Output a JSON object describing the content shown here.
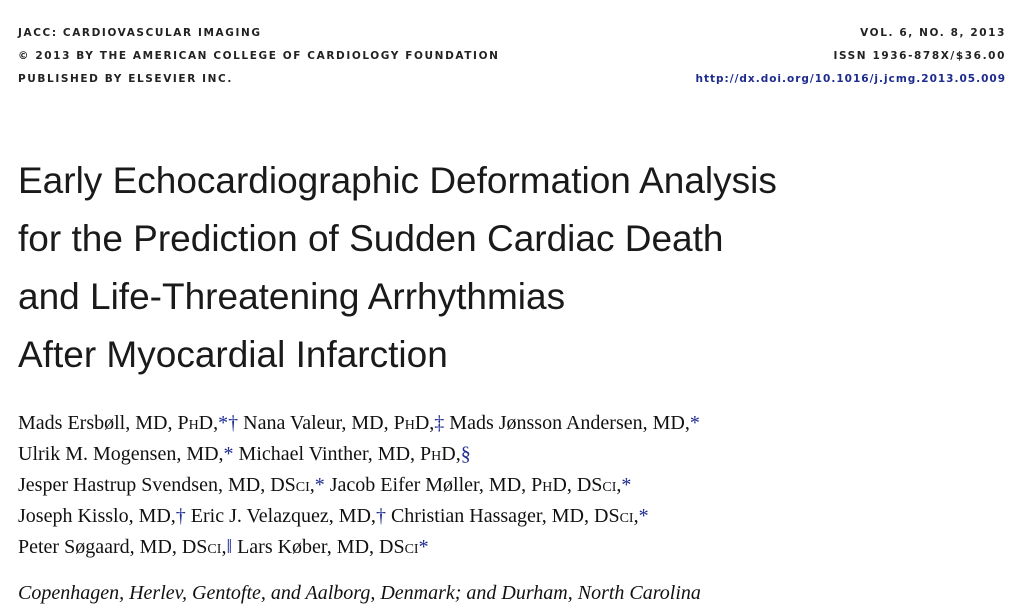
{
  "header": {
    "left": [
      "JACC: CARDIOVASCULAR IMAGING",
      "© 2013 BY THE AMERICAN COLLEGE OF CARDIOLOGY FOUNDATION",
      "PUBLISHED BY ELSEVIER INC."
    ],
    "right": [
      "VOL. 6, NO. 8, 2013",
      "ISSN 1936-878X/$36.00",
      "http://dx.doi.org/10.1016/j.jcmg.2013.05.009"
    ]
  },
  "title_lines": [
    "Early Echocardiographic Deformation Analysis",
    "for the Prediction of Sudden Cardiac Death",
    "and Life-Threatening Arrhythmias",
    "After Myocardial Infarction"
  ],
  "authors": {
    "ersboll": {
      "name": "Mads Ersbøll, MD, ",
      "deg": "PhD",
      "sep": ",",
      "marks": "*†"
    },
    "valeur": {
      "name": " Nana Valeur, MD, ",
      "deg": "PhD",
      "sep": ",",
      "marks": "‡"
    },
    "andersen": {
      "name": " Mads Jønsson Andersen, MD,",
      "marks": "*"
    },
    "mogensen": {
      "name": "Ulrik M. Mogensen, MD,",
      "marks": "*"
    },
    "vinther": {
      "name": " Michael Vinther, MD, ",
      "deg": "PhD",
      "sep": ",",
      "marks": "§"
    },
    "svendsen": {
      "name": "Jesper Hastrup Svendsen, MD, ",
      "deg": "DSci",
      "sep": ",",
      "marks": "*"
    },
    "moller": {
      "name": " Jacob Eifer Møller, MD, ",
      "deg1": "PhD",
      "mid": ", ",
      "deg2": "DSci",
      "sep": ",",
      "marks": "*"
    },
    "kisslo": {
      "name": "Joseph Kisslo, MD,",
      "marks": "†"
    },
    "velazquez": {
      "name": " Eric J. Velazquez, MD,",
      "marks": "†"
    },
    "hassager": {
      "name": " Christian Hassager, MD, ",
      "deg": "DSci",
      "sep": ",",
      "marks": "*"
    },
    "sogaard": {
      "name": "Peter Søgaard, MD, ",
      "deg": "DSci",
      "sep": ",",
      "marks": "‖"
    },
    "kober": {
      "name": " Lars Køber, MD, ",
      "deg": "DSci",
      "marks": "*"
    }
  },
  "affiliation": "Copenhagen, Herlev, Gentofte, and Aalborg, Denmark; and Durham, North Carolina"
}
